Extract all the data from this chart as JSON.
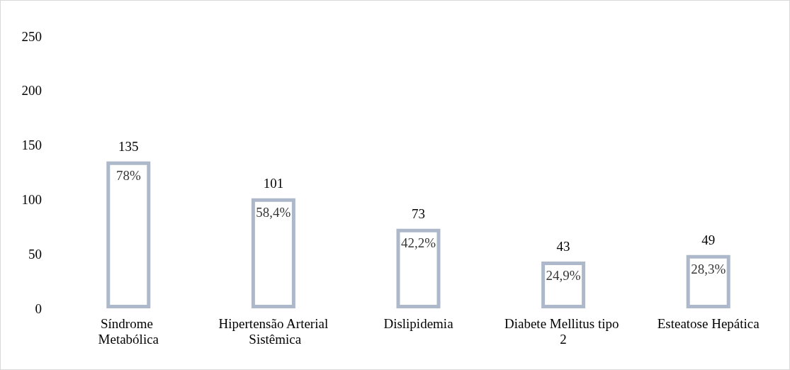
{
  "chart_data": {
    "type": "bar",
    "categories": [
      "Síndrome Metabólica",
      "Hipertensão Arterial Sistêmica",
      "Dislipidemia",
      "Diabete Mellitus tipo 2",
      "Esteatose Hepática"
    ],
    "values": [
      135,
      101,
      73,
      43,
      49
    ],
    "color": "#adb9ca",
    "ylim": [
      0,
      250
    ],
    "yticks": [
      0,
      50,
      100,
      150,
      200,
      250
    ],
    "grid": false,
    "data_labels": true,
    "annotations": [
      {
        "text": "78%",
        "x": "Síndrome Metabólica",
        "y": 135
      },
      {
        "text": "58,4%",
        "x": "Hipertensão Arterial Sistêmica",
        "y": 101
      },
      {
        "text": "42,2%",
        "x": "Dislipidemia",
        "y": 73
      },
      {
        "text": "24,9%",
        "x": "Diabete Mellitus tipo 2",
        "y": 43
      },
      {
        "text": "28,3%",
        "x": "Esteatose Hepática",
        "y": 49
      }
    ]
  }
}
